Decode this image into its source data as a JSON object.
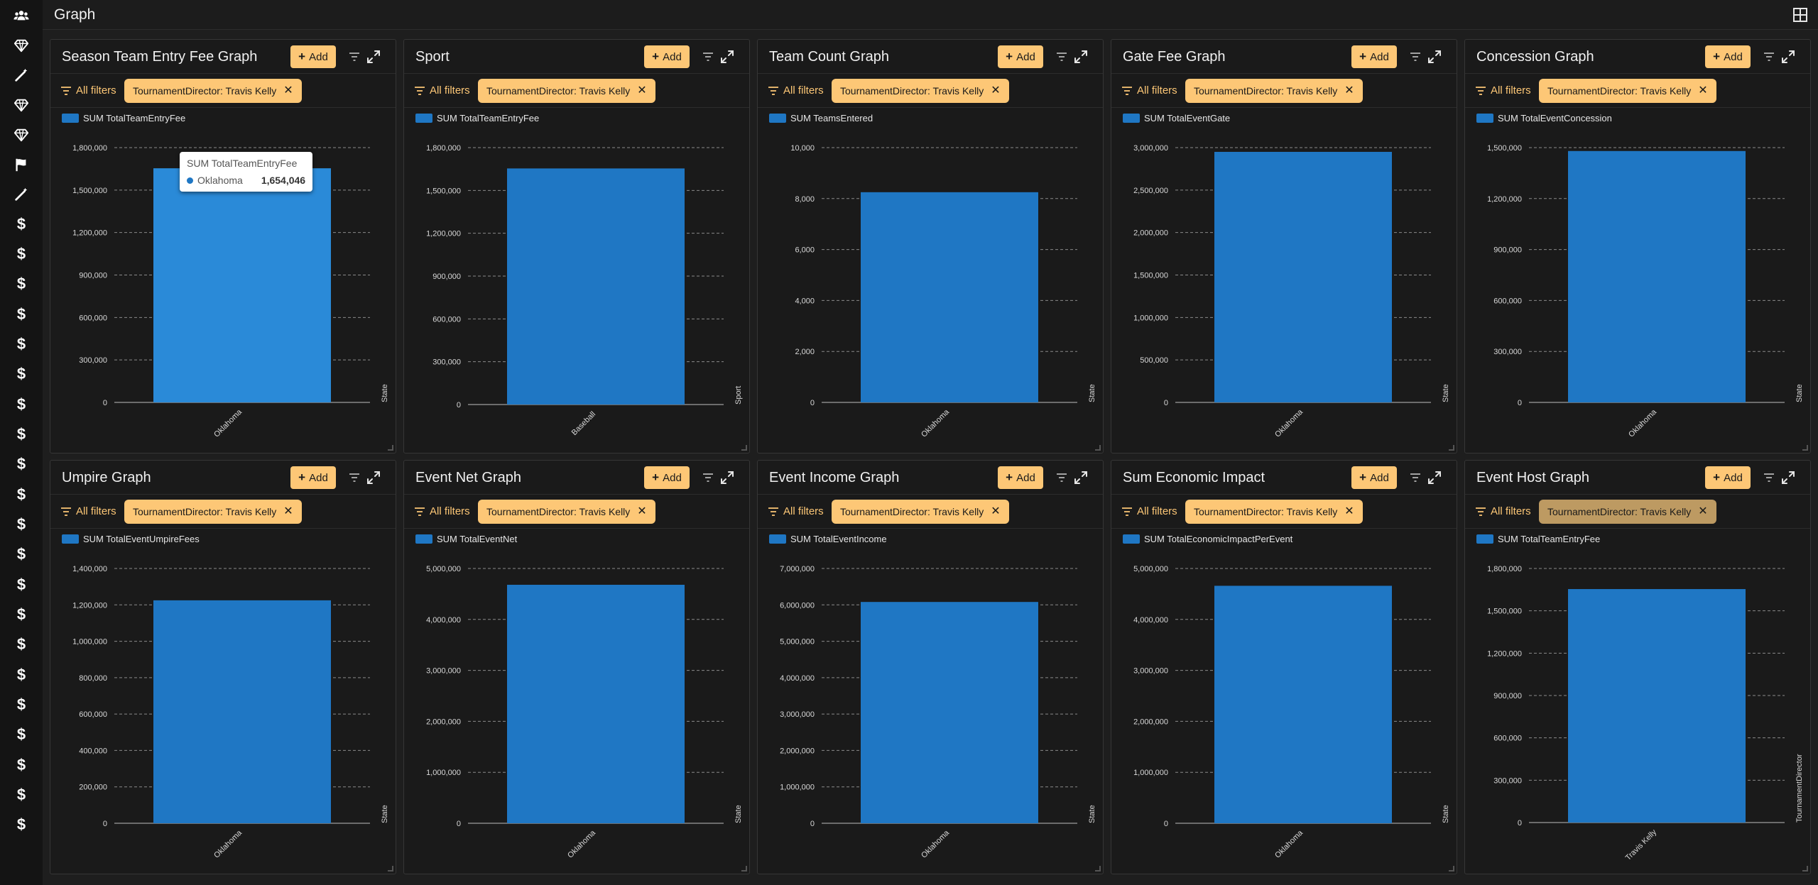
{
  "page": {
    "title": "Graph"
  },
  "rail": {
    "icons": [
      "users-icon",
      "gem-icon",
      "wand-icon",
      "gem-icon",
      "gem-icon",
      "flag-icon",
      "wand-icon",
      "dollar-icon",
      "dollar-icon",
      "dollar-icon",
      "dollar-icon",
      "dollar-icon",
      "dollar-icon",
      "dollar-icon",
      "dollar-icon",
      "dollar-icon",
      "dollar-icon",
      "dollar-icon",
      "dollar-icon",
      "dollar-icon",
      "dollar-icon",
      "dollar-icon",
      "dollar-icon",
      "dollar-icon",
      "dollar-icon",
      "dollar-icon",
      "dollar-icon",
      "dollar-icon"
    ]
  },
  "colors": {
    "accent": "#fdc776",
    "bar": "#1f77c4",
    "bar_highlight": "#2a8ad8",
    "background": "#1e1e1e",
    "panel": "#1a1a1a"
  },
  "common": {
    "add_label": "Add",
    "all_filters_label": "All filters",
    "filter_chip": "TournamentDirector: Travis Kelly",
    "close_glyph": "✕"
  },
  "panels": [
    {
      "title": "Season Team Entry Fee Graph",
      "chart_data": {
        "type": "bar",
        "legend": "SUM TotalTeamEntryFee",
        "categories": [
          "Oklahoma"
        ],
        "values": [
          1654046
        ],
        "ylim": [
          0,
          1800000
        ],
        "yticks": [
          0,
          300000,
          600000,
          900000,
          1200000,
          1500000,
          1800000
        ],
        "ytick_labels": [
          "0",
          "300,000",
          "600,000",
          "900,000",
          "1,200,000",
          "1,500,000",
          "1,800,000"
        ],
        "xlabel": "State",
        "grid": true,
        "legend_position": "top-left"
      },
      "tooltip": {
        "title": "SUM TotalTeamEntryFee",
        "label": "Oklahoma",
        "value": "1,654,046"
      }
    },
    {
      "title": "Sport",
      "chart_data": {
        "type": "bar",
        "legend": "SUM TotalTeamEntryFee",
        "categories": [
          "Baseball"
        ],
        "values": [
          1654046
        ],
        "ylim": [
          0,
          1800000
        ],
        "yticks": [
          0,
          300000,
          600000,
          900000,
          1200000,
          1500000,
          1800000
        ],
        "ytick_labels": [
          "0",
          "300,000",
          "600,000",
          "900,000",
          "1,200,000",
          "1,500,000",
          "1,800,000"
        ],
        "xlabel": "Sport",
        "grid": true,
        "legend_position": "top-left"
      }
    },
    {
      "title": "Team Count Graph",
      "chart_data": {
        "type": "bar",
        "legend": "SUM TeamsEntered",
        "categories": [
          "Oklahoma"
        ],
        "values": [
          8250
        ],
        "ylim": [
          0,
          10000
        ],
        "yticks": [
          0,
          2000,
          4000,
          6000,
          8000,
          10000
        ],
        "ytick_labels": [
          "0",
          "2,000",
          "4,000",
          "6,000",
          "8,000",
          "10,000"
        ],
        "xlabel": "State",
        "grid": true,
        "legend_position": "top-left"
      }
    },
    {
      "title": "Gate Fee Graph",
      "chart_data": {
        "type": "bar",
        "legend": "SUM TotalEventGate",
        "categories": [
          "Oklahoma"
        ],
        "values": [
          2950000
        ],
        "ylim": [
          0,
          3000000
        ],
        "yticks": [
          0,
          500000,
          1000000,
          1500000,
          2000000,
          2500000,
          3000000
        ],
        "ytick_labels": [
          "0",
          "500,000",
          "1,000,000",
          "1,500,000",
          "2,000,000",
          "2,500,000",
          "3,000,000"
        ],
        "xlabel": "State",
        "grid": true,
        "legend_position": "top-left"
      }
    },
    {
      "title": "Concession Graph",
      "chart_data": {
        "type": "bar",
        "legend": "SUM TotalEventConcession",
        "categories": [
          "Oklahoma"
        ],
        "values": [
          1480000
        ],
        "ylim": [
          0,
          1500000
        ],
        "yticks": [
          0,
          300000,
          600000,
          900000,
          1200000,
          1500000
        ],
        "ytick_labels": [
          "0",
          "300,000",
          "600,000",
          "900,000",
          "1,200,000",
          "1,500,000"
        ],
        "xlabel": "State",
        "grid": true,
        "legend_position": "top-left"
      }
    },
    {
      "title": "Umpire Graph",
      "chart_data": {
        "type": "bar",
        "legend": "SUM TotalEventUmpireFees",
        "categories": [
          "Oklahoma"
        ],
        "values": [
          1225000
        ],
        "ylim": [
          0,
          1400000
        ],
        "yticks": [
          0,
          200000,
          400000,
          600000,
          800000,
          1000000,
          1200000,
          1400000
        ],
        "ytick_labels": [
          "0",
          "200,000",
          "400,000",
          "600,000",
          "800,000",
          "1,000,000",
          "1,200,000",
          "1,400,000"
        ],
        "xlabel": "State",
        "grid": true,
        "legend_position": "top-left"
      }
    },
    {
      "title": "Event Net Graph",
      "chart_data": {
        "type": "bar",
        "legend": "SUM TotalEventNet",
        "categories": [
          "Oklahoma"
        ],
        "values": [
          4680000
        ],
        "ylim": [
          0,
          5000000
        ],
        "yticks": [
          0,
          1000000,
          2000000,
          3000000,
          4000000,
          5000000
        ],
        "ytick_labels": [
          "0",
          "1,000,000",
          "2,000,000",
          "3,000,000",
          "4,000,000",
          "5,000,000"
        ],
        "xlabel": "State",
        "grid": true,
        "legend_position": "top-left"
      }
    },
    {
      "title": "Event Income Graph",
      "chart_data": {
        "type": "bar",
        "legend": "SUM TotalEventIncome",
        "categories": [
          "Oklahoma"
        ],
        "values": [
          6080000
        ],
        "ylim": [
          0,
          7000000
        ],
        "yticks": [
          0,
          1000000,
          2000000,
          3000000,
          4000000,
          5000000,
          6000000,
          7000000
        ],
        "ytick_labels": [
          "0",
          "1,000,000",
          "2,000,000",
          "3,000,000",
          "4,000,000",
          "5,000,000",
          "6,000,000",
          "7,000,000"
        ],
        "xlabel": "State",
        "grid": true,
        "legend_position": "top-left"
      }
    },
    {
      "title": "Sum Economic Impact",
      "chart_data": {
        "type": "bar",
        "legend": "SUM TotalEconomicImpactPerEvent",
        "categories": [
          "Oklahoma"
        ],
        "values": [
          4660000
        ],
        "ylim": [
          0,
          5000000
        ],
        "yticks": [
          0,
          1000000,
          2000000,
          3000000,
          4000000,
          5000000
        ],
        "ytick_labels": [
          "0",
          "1,000,000",
          "2,000,000",
          "3,000,000",
          "4,000,000",
          "5,000,000"
        ],
        "xlabel": "State",
        "grid": true,
        "legend_position": "top-left"
      }
    },
    {
      "title": "Event Host Graph",
      "chart_data": {
        "type": "bar",
        "legend": "SUM TotalTeamEntryFee",
        "categories": [
          "Travis Kelly"
        ],
        "values": [
          1654046
        ],
        "ylim": [
          0,
          1800000
        ],
        "yticks": [
          0,
          300000,
          600000,
          900000,
          1200000,
          1500000,
          1800000
        ],
        "ytick_labels": [
          "0",
          "300,000",
          "600,000",
          "900,000",
          "1,200,000",
          "1,500,000",
          "1,800,000"
        ],
        "xlabel": "TournamentDirector",
        "grid": true,
        "legend_position": "top-left"
      },
      "chip_dim": true
    }
  ]
}
